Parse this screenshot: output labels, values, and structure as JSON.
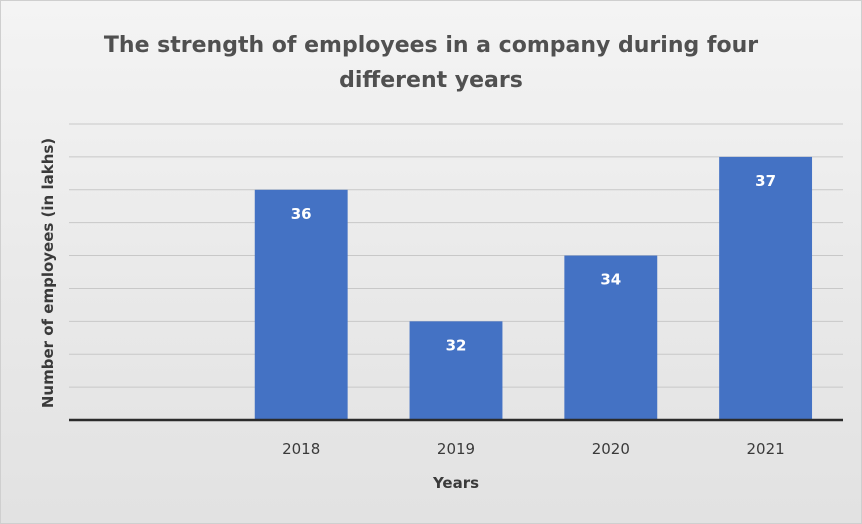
{
  "chart_data": {
    "type": "bar",
    "title_lines": [
      "The strength of employees in a company during four",
      "different years"
    ],
    "xlabel": "Years",
    "ylabel": "Number of employees (in lakhs)",
    "categories": [
      "2018",
      "2019",
      "2020",
      "2021"
    ],
    "series": [
      {
        "values": [
          36,
          32,
          34,
          37
        ],
        "color": "#4472c4"
      }
    ],
    "data_labels": [
      "36",
      "32",
      "34",
      "37"
    ],
    "ylim": [
      29,
      38
    ],
    "gridline_step": 1,
    "y_tick_labels_shown": false,
    "grid": true,
    "legend": "none"
  },
  "colors": {
    "bar": "#4472c4",
    "gridline": "#c8c8c8",
    "axis_line": "#2b2b2b"
  }
}
